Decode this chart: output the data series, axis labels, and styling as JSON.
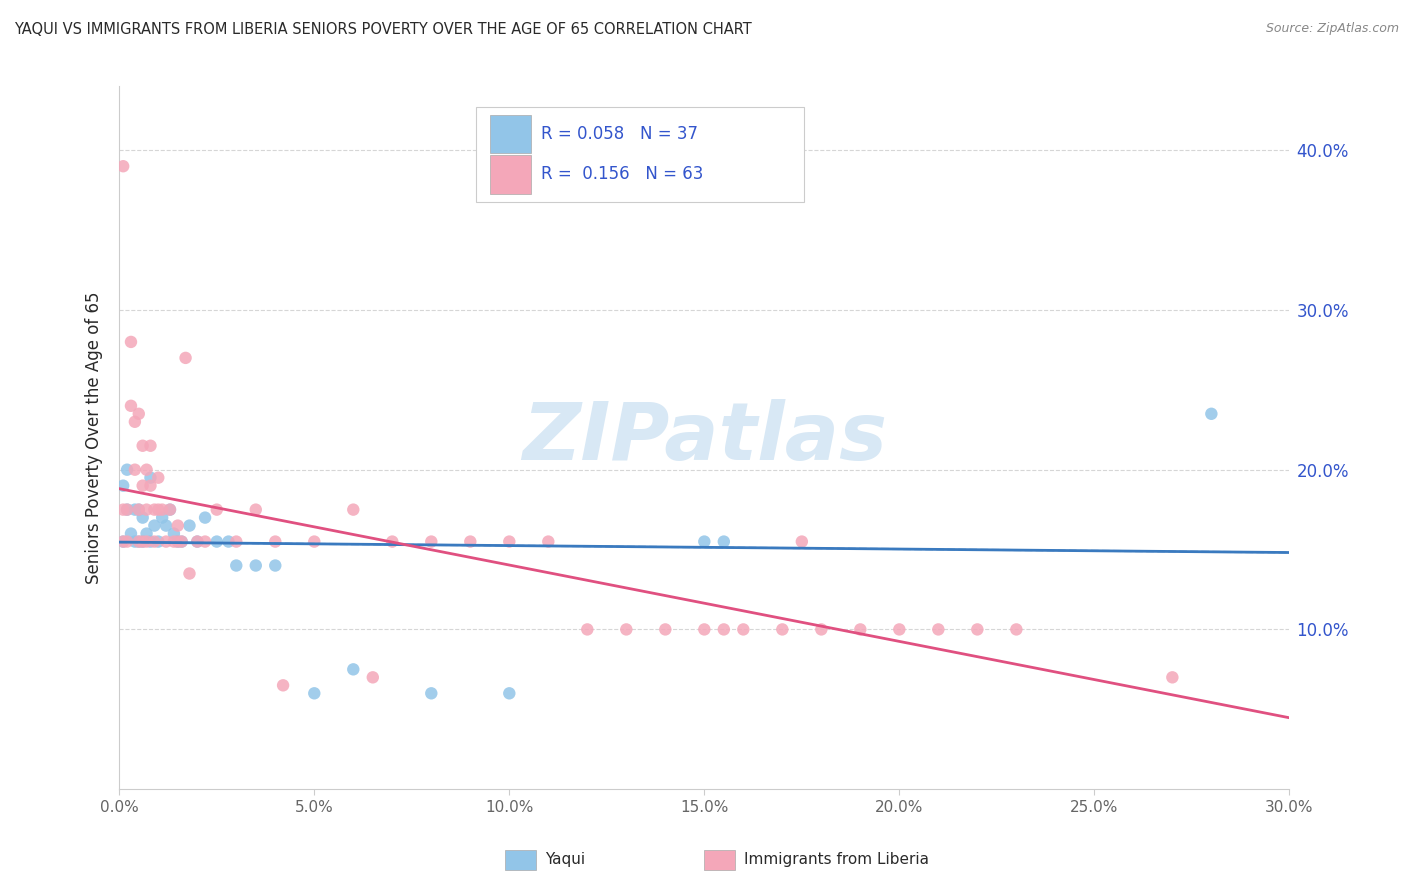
{
  "title": "YAQUI VS IMMIGRANTS FROM LIBERIA SENIORS POVERTY OVER THE AGE OF 65 CORRELATION CHART",
  "source": "Source: ZipAtlas.com",
  "ylabel": "Seniors Poverty Over the Age of 65",
  "watermark": "ZIPatlas",
  "legend_yaqui": "Yaqui",
  "legend_liberia": "Immigrants from Liberia",
  "R_yaqui": 0.058,
  "N_yaqui": 37,
  "R_liberia": 0.156,
  "N_liberia": 63,
  "xlim": [
    0.0,
    0.3
  ],
  "ylim": [
    0.0,
    0.44
  ],
  "xtick_labels": [
    "0.0%",
    "5.0%",
    "10.0%",
    "15.0%",
    "20.0%",
    "25.0%",
    "30.0%"
  ],
  "xtick_vals": [
    0.0,
    0.05,
    0.1,
    0.15,
    0.2,
    0.25,
    0.3
  ],
  "ytick_labels": [
    "10.0%",
    "20.0%",
    "30.0%",
    "40.0%"
  ],
  "ytick_vals": [
    0.1,
    0.2,
    0.3,
    0.4
  ],
  "color_yaqui": "#92c5e8",
  "color_liberia": "#f4a7b9",
  "color_trendline_yaqui": "#3a7abf",
  "color_trendline_liberia": "#e05080",
  "color_title": "#2a2a2a",
  "color_source": "#888888",
  "color_legend_text": "#3355cc",
  "color_grid": "#cccccc",
  "color_axis": "#666666",
  "yaqui_x": [
    0.001,
    0.001,
    0.002,
    0.002,
    0.003,
    0.004,
    0.004,
    0.005,
    0.005,
    0.006,
    0.006,
    0.007,
    0.008,
    0.008,
    0.009,
    0.01,
    0.011,
    0.012,
    0.013,
    0.014,
    0.015,
    0.016,
    0.018,
    0.02,
    0.022,
    0.025,
    0.028,
    0.03,
    0.035,
    0.04,
    0.05,
    0.06,
    0.08,
    0.1,
    0.15,
    0.155,
    0.28
  ],
  "yaqui_y": [
    0.19,
    0.155,
    0.2,
    0.175,
    0.16,
    0.175,
    0.155,
    0.175,
    0.155,
    0.17,
    0.155,
    0.16,
    0.155,
    0.195,
    0.165,
    0.155,
    0.17,
    0.165,
    0.175,
    0.16,
    0.155,
    0.155,
    0.165,
    0.155,
    0.17,
    0.155,
    0.155,
    0.14,
    0.14,
    0.14,
    0.06,
    0.075,
    0.06,
    0.06,
    0.155,
    0.155,
    0.235
  ],
  "liberia_x": [
    0.001,
    0.001,
    0.001,
    0.002,
    0.002,
    0.003,
    0.003,
    0.004,
    0.004,
    0.005,
    0.005,
    0.005,
    0.006,
    0.006,
    0.006,
    0.007,
    0.007,
    0.007,
    0.008,
    0.008,
    0.009,
    0.009,
    0.01,
    0.01,
    0.011,
    0.012,
    0.013,
    0.014,
    0.015,
    0.015,
    0.016,
    0.017,
    0.018,
    0.02,
    0.022,
    0.025,
    0.03,
    0.035,
    0.04,
    0.042,
    0.05,
    0.06,
    0.065,
    0.07,
    0.08,
    0.09,
    0.1,
    0.11,
    0.12,
    0.13,
    0.14,
    0.15,
    0.155,
    0.16,
    0.17,
    0.175,
    0.18,
    0.19,
    0.2,
    0.21,
    0.22,
    0.23,
    0.27
  ],
  "liberia_y": [
    0.155,
    0.175,
    0.39,
    0.175,
    0.155,
    0.28,
    0.24,
    0.23,
    0.2,
    0.235,
    0.175,
    0.155,
    0.215,
    0.19,
    0.155,
    0.2,
    0.175,
    0.155,
    0.215,
    0.19,
    0.175,
    0.155,
    0.195,
    0.175,
    0.175,
    0.155,
    0.175,
    0.155,
    0.165,
    0.155,
    0.155,
    0.27,
    0.135,
    0.155,
    0.155,
    0.175,
    0.155,
    0.175,
    0.155,
    0.065,
    0.155,
    0.175,
    0.07,
    0.155,
    0.155,
    0.155,
    0.155,
    0.155,
    0.1,
    0.1,
    0.1,
    0.1,
    0.1,
    0.1,
    0.1,
    0.155,
    0.1,
    0.1,
    0.1,
    0.1,
    0.1,
    0.1,
    0.07
  ],
  "trendline_x_start": 0.0,
  "trendline_x_end": 0.3
}
